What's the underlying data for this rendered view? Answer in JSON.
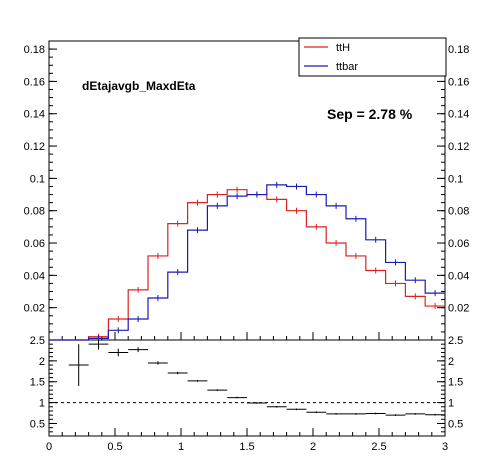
{
  "chart_data": [
    {
      "type": "histogram",
      "variable_label": "dEtajavgb_MaxdEta",
      "annotation": "Sep = 2.78 %",
      "xlim": [
        0,
        3
      ],
      "ylim": [
        0,
        0.185
      ],
      "x_bin_edges": [
        0.0,
        0.15,
        0.3,
        0.45,
        0.6,
        0.75,
        0.9,
        1.05,
        1.2,
        1.35,
        1.5,
        1.65,
        1.8,
        1.95,
        2.1,
        2.25,
        2.4,
        2.55,
        2.7,
        2.85,
        3.0
      ],
      "yticks": [
        0.02,
        0.04,
        0.06,
        0.08,
        0.1,
        0.12,
        0.14,
        0.16,
        0.18
      ],
      "y_tick_labels": [
        "0.02",
        "0.04",
        "0.06",
        "0.08",
        "0.1",
        "0.12",
        "0.14",
        "0.16",
        "0.18"
      ],
      "legend_position": "top-right",
      "series": [
        {
          "name": "ttH",
          "color": "#dd2222",
          "values": [
            0.0,
            0.0,
            0.002,
            0.013,
            0.031,
            0.052,
            0.072,
            0.085,
            0.09,
            0.093,
            0.09,
            0.087,
            0.08,
            0.07,
            0.06,
            0.052,
            0.043,
            0.035,
            0.027,
            0.021
          ]
        },
        {
          "name": "ttbar",
          "color": "#1a1ab8",
          "values": [
            0.0,
            0.0,
            0.001,
            0.006,
            0.013,
            0.026,
            0.042,
            0.068,
            0.083,
            0.089,
            0.09,
            0.096,
            0.095,
            0.09,
            0.083,
            0.075,
            0.062,
            0.048,
            0.037,
            0.029
          ]
        }
      ]
    },
    {
      "type": "ratio",
      "xlim": [
        0,
        3
      ],
      "ylim": [
        0.2,
        2.5
      ],
      "reference_line": 1,
      "xticks": [
        0,
        0.5,
        1,
        1.5,
        2,
        2.5,
        3
      ],
      "x_tick_labels": [
        "0",
        "0.5",
        "1",
        "1.5",
        "2",
        "2.5",
        "3"
      ],
      "yticks": [
        0.5,
        1,
        1.5,
        2,
        2.5
      ],
      "y_tick_labels": [
        "0.5",
        "1",
        "1.5",
        "2",
        "2.5"
      ],
      "points": [
        {
          "x": 0.225,
          "xerr": 0.075,
          "y": 1.9,
          "yerr": 0.5
        },
        {
          "x": 0.375,
          "xerr": 0.075,
          "y": 2.4,
          "yerr": 0.13
        },
        {
          "x": 0.525,
          "xerr": 0.075,
          "y": 2.2,
          "yerr": 0.09
        },
        {
          "x": 0.675,
          "xerr": 0.075,
          "y": 2.27,
          "yerr": 0.06
        },
        {
          "x": 0.825,
          "xerr": 0.075,
          "y": 1.95,
          "yerr": 0.04
        },
        {
          "x": 0.975,
          "xerr": 0.075,
          "y": 1.71,
          "yerr": 0.03
        },
        {
          "x": 1.125,
          "xerr": 0.075,
          "y": 1.52,
          "yerr": 0.02
        },
        {
          "x": 1.275,
          "xerr": 0.075,
          "y": 1.3,
          "yerr": 0.02
        },
        {
          "x": 1.425,
          "xerr": 0.075,
          "y": 1.12,
          "yerr": 0.02
        },
        {
          "x": 1.575,
          "xerr": 0.075,
          "y": 0.99,
          "yerr": 0.02
        },
        {
          "x": 1.725,
          "xerr": 0.075,
          "y": 0.9,
          "yerr": 0.02
        },
        {
          "x": 1.875,
          "xerr": 0.075,
          "y": 0.84,
          "yerr": 0.02
        },
        {
          "x": 2.025,
          "xerr": 0.075,
          "y": 0.77,
          "yerr": 0.02
        },
        {
          "x": 2.175,
          "xerr": 0.075,
          "y": 0.73,
          "yerr": 0.02
        },
        {
          "x": 2.325,
          "xerr": 0.075,
          "y": 0.73,
          "yerr": 0.02
        },
        {
          "x": 2.475,
          "xerr": 0.075,
          "y": 0.74,
          "yerr": 0.02
        },
        {
          "x": 2.625,
          "xerr": 0.075,
          "y": 0.7,
          "yerr": 0.02
        },
        {
          "x": 2.775,
          "xerr": 0.075,
          "y": 0.73,
          "yerr": 0.02
        },
        {
          "x": 2.925,
          "xerr": 0.075,
          "y": 0.71,
          "yerr": 0.02
        }
      ]
    }
  ]
}
